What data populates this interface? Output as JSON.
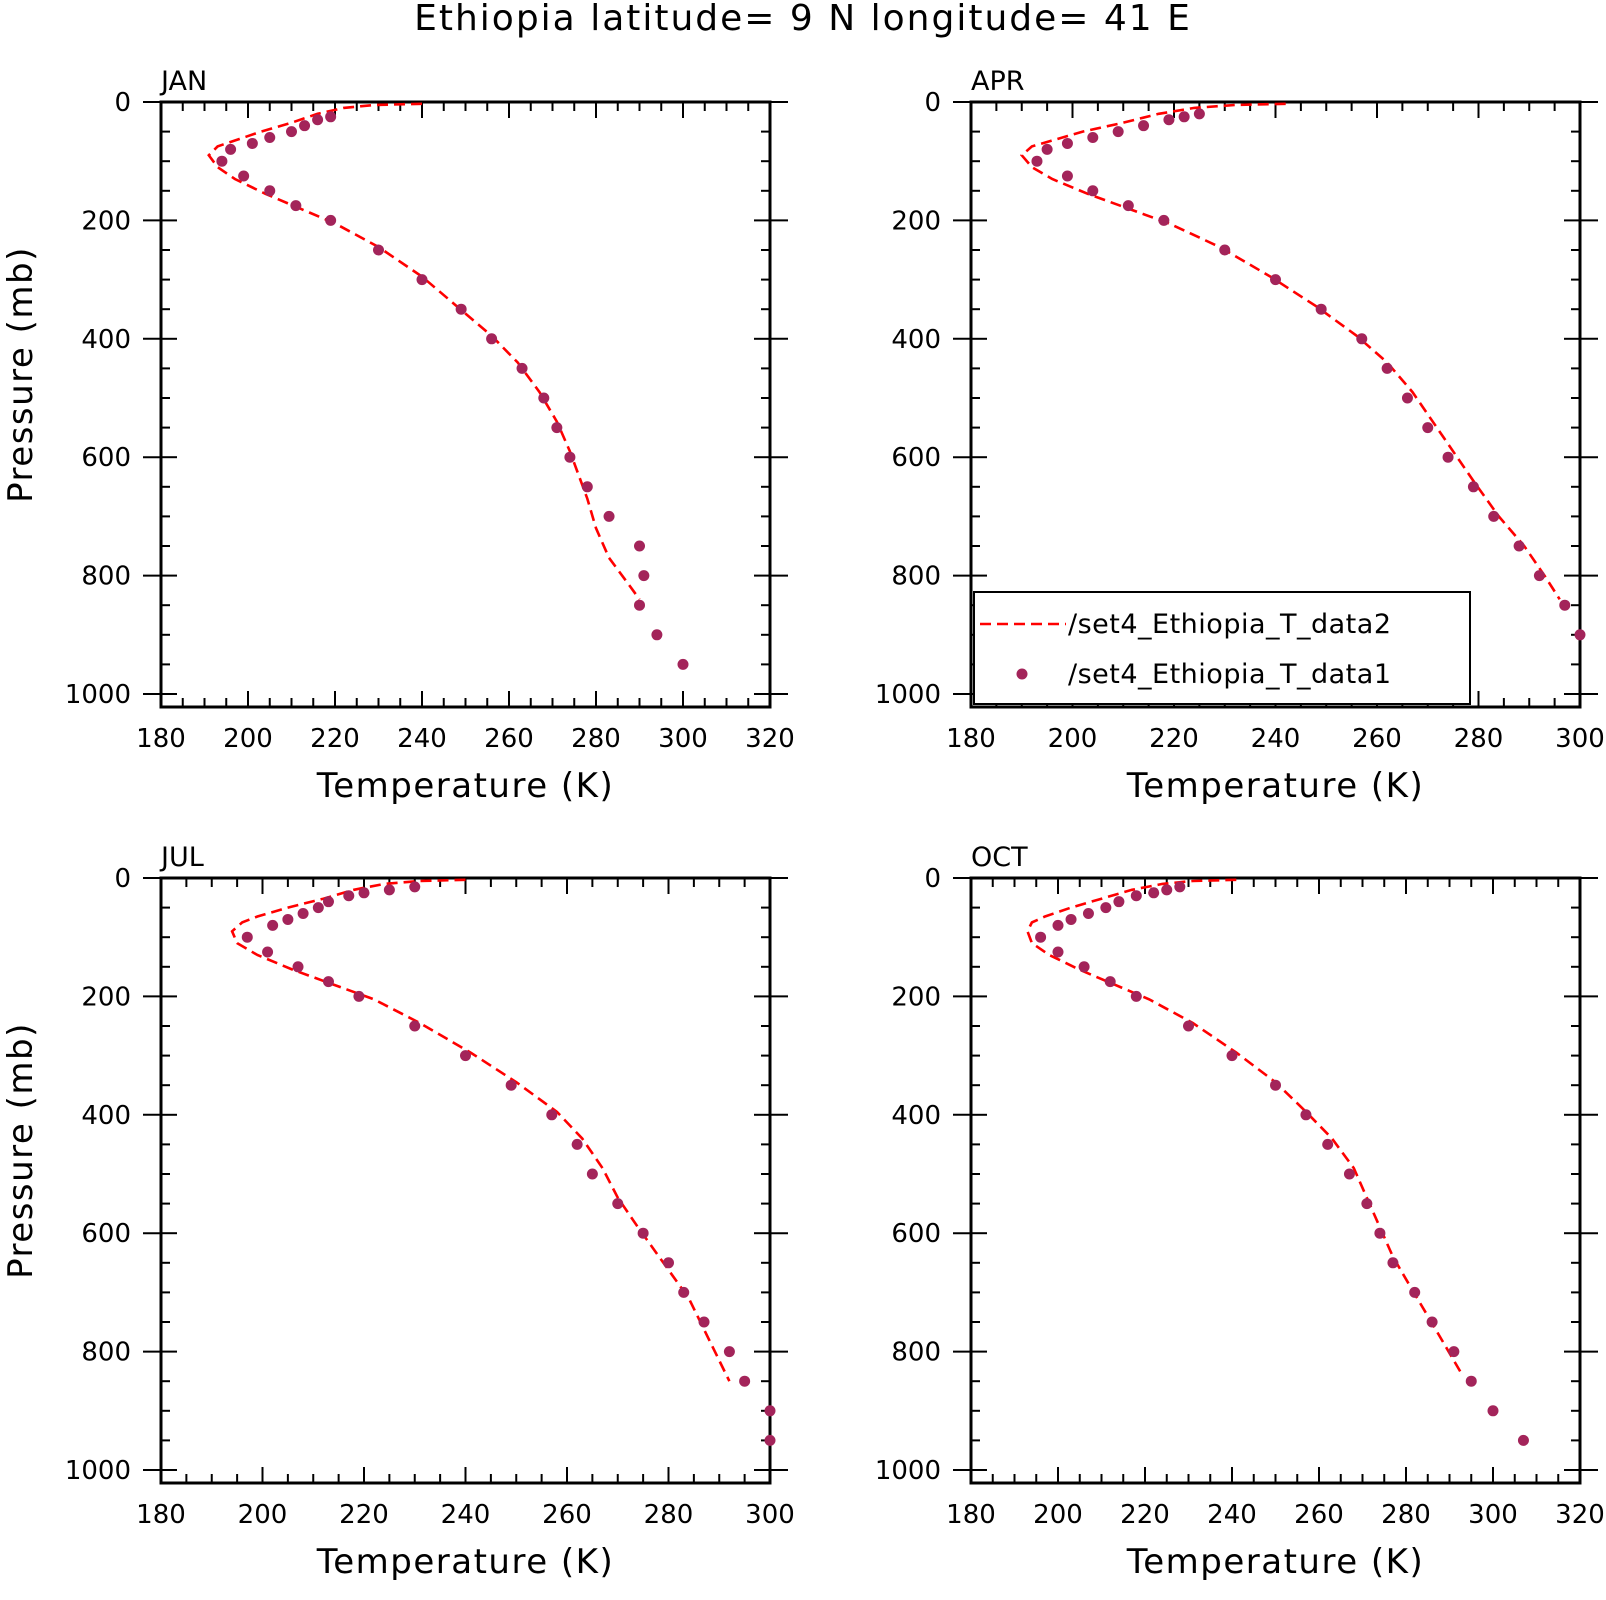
{
  "title": "Ethiopia  latitude= 9 N longitude= 41 E",
  "colors": {
    "line": "#ff0000",
    "dots": "#a3245a",
    "axis": "#000000"
  },
  "legend": {
    "items": [
      "/set4_Ethiopia_T_data2",
      "/set4_Ethiopia_T_data1"
    ],
    "panel": "APR"
  },
  "chart_data": [
    {
      "type": "line",
      "panel": "JAN",
      "xlabel": "Temperature (K)",
      "ylabel": "Pressure (mb)",
      "xlim": [
        180,
        320
      ],
      "ylim": [
        1000,
        0
      ],
      "xticks": [
        "180",
        "200",
        "220",
        "240",
        "260",
        "280",
        "300",
        "320"
      ],
      "yticks": [
        "0",
        "200",
        "400",
        "600",
        "800",
        "1000"
      ],
      "series": [
        {
          "name": "/set4_Ethiopia_T_data2",
          "style": "dashed",
          "x": [
            240,
            229,
            222,
            216,
            210,
            203,
            197,
            193,
            191,
            193,
            197,
            204,
            212,
            220,
            230,
            240,
            248,
            256,
            262,
            267,
            271,
            274,
            276,
            278,
            280,
            283,
            287,
            290
          ],
          "y": [
            3,
            5,
            10,
            20,
            35,
            50,
            65,
            75,
            90,
            110,
            130,
            155,
            180,
            205,
            245,
            295,
            345,
            395,
            440,
            490,
            540,
            590,
            630,
            670,
            720,
            770,
            810,
            840
          ]
        },
        {
          "name": "/set4_Ethiopia_T_data1",
          "style": "dots",
          "x": [
            219,
            216,
            213,
            210,
            205,
            201,
            196,
            194,
            199,
            205,
            211,
            219,
            230,
            240,
            249,
            256,
            263,
            268,
            271,
            274,
            278,
            283,
            290,
            291,
            290,
            294,
            300
          ],
          "y": [
            25,
            30,
            40,
            50,
            60,
            70,
            80,
            100,
            125,
            150,
            175,
            200,
            250,
            300,
            350,
            400,
            450,
            500,
            550,
            600,
            650,
            700,
            750,
            800,
            850,
            900,
            950
          ]
        }
      ]
    },
    {
      "type": "line",
      "panel": "APR",
      "xlabel": "Temperature (K)",
      "ylabel": "",
      "xlim": [
        180,
        300
      ],
      "ylim": [
        1000,
        0
      ],
      "xticks": [
        "180",
        "200",
        "220",
        "240",
        "260",
        "280",
        "300"
      ],
      "yticks": [
        "0",
        "200",
        "400",
        "600",
        "800",
        "1000"
      ],
      "series": [
        {
          "name": "/set4_Ethiopia_T_data2",
          "style": "dashed",
          "x": [
            242,
            232,
            224,
            217,
            210,
            202,
            196,
            192,
            190,
            192,
            196,
            203,
            211,
            219,
            229,
            239,
            248,
            256,
            262,
            267,
            271,
            275,
            279,
            284,
            289,
            293,
            296
          ],
          "y": [
            3,
            5,
            10,
            20,
            35,
            50,
            65,
            75,
            90,
            110,
            130,
            155,
            180,
            205,
            245,
            295,
            345,
            395,
            440,
            490,
            540,
            590,
            640,
            700,
            750,
            800,
            840
          ]
        },
        {
          "name": "/set4_Ethiopia_T_data1",
          "style": "dots",
          "x": [
            225,
            222,
            219,
            214,
            209,
            204,
            199,
            195,
            193,
            199,
            204,
            211,
            218,
            230,
            240,
            249,
            257,
            262,
            266,
            270,
            274,
            279,
            283,
            288,
            292,
            297,
            300
          ],
          "y": [
            20,
            25,
            30,
            40,
            50,
            60,
            70,
            80,
            100,
            125,
            150,
            175,
            200,
            250,
            300,
            350,
            400,
            450,
            500,
            550,
            600,
            650,
            700,
            750,
            800,
            850,
            900
          ]
        }
      ]
    },
    {
      "type": "line",
      "panel": "JUL",
      "xlabel": "Temperature (K)",
      "ylabel": "Pressure (mb)",
      "xlim": [
        180,
        300
      ],
      "ylim": [
        1000,
        0
      ],
      "xticks": [
        "180",
        "200",
        "220",
        "240",
        "260",
        "280",
        "300"
      ],
      "yticks": [
        "0",
        "200",
        "400",
        "600",
        "800",
        "1000"
      ],
      "series": [
        {
          "name": "/set4_Ethiopia_T_data2",
          "style": "dashed",
          "x": [
            240,
            231,
            224,
            218,
            212,
            205,
            199,
            196,
            194,
            195,
            199,
            206,
            214,
            222,
            231,
            241,
            250,
            258,
            263,
            267,
            270,
            274,
            279,
            284,
            288,
            292
          ],
          "y": [
            3,
            5,
            10,
            20,
            35,
            50,
            65,
            75,
            90,
            110,
            130,
            155,
            180,
            205,
            245,
            295,
            345,
            395,
            440,
            490,
            540,
            590,
            650,
            710,
            780,
            850
          ]
        },
        {
          "name": "/set4_Ethiopia_T_data1",
          "style": "dots",
          "x": [
            230,
            225,
            220,
            217,
            213,
            211,
            208,
            205,
            202,
            197,
            201,
            207,
            213,
            219,
            230,
            240,
            249,
            257,
            262,
            265,
            270,
            275,
            280,
            283,
            287,
            292,
            295,
            300,
            300
          ],
          "y": [
            15,
            20,
            25,
            30,
            40,
            50,
            60,
            70,
            80,
            100,
            125,
            150,
            175,
            200,
            250,
            300,
            350,
            400,
            450,
            500,
            550,
            600,
            650,
            700,
            750,
            800,
            850,
            900,
            950
          ]
        }
      ]
    },
    {
      "type": "line",
      "panel": "OCT",
      "xlabel": "Temperature (K)",
      "ylabel": "",
      "xlim": [
        180,
        320
      ],
      "ylim": [
        1000,
        0
      ],
      "xticks": [
        "180",
        "200",
        "220",
        "240",
        "260",
        "280",
        "300",
        "320"
      ],
      "yticks": [
        "0",
        "200",
        "400",
        "600",
        "800",
        "1000"
      ],
      "series": [
        {
          "name": "/set4_Ethiopia_T_data2",
          "style": "dashed",
          "x": [
            241,
            231,
            224,
            217,
            210,
            203,
            197,
            194,
            193,
            194,
            198,
            205,
            213,
            221,
            231,
            241,
            250,
            257,
            263,
            268,
            271,
            274,
            277,
            281,
            285,
            289,
            293
          ],
          "y": [
            3,
            5,
            10,
            20,
            35,
            50,
            65,
            75,
            90,
            110,
            130,
            155,
            180,
            205,
            245,
            295,
            345,
            395,
            440,
            490,
            540,
            590,
            640,
            690,
            740,
            790,
            840
          ]
        },
        {
          "name": "/set4_Ethiopia_T_data1",
          "style": "dots",
          "x": [
            228,
            225,
            222,
            218,
            214,
            211,
            207,
            203,
            200,
            196,
            200,
            206,
            212,
            218,
            230,
            240,
            250,
            257,
            262,
            267,
            271,
            274,
            277,
            282,
            286,
            291,
            295,
            300,
            307
          ],
          "y": [
            15,
            20,
            25,
            30,
            40,
            50,
            60,
            70,
            80,
            100,
            125,
            150,
            175,
            200,
            250,
            300,
            350,
            400,
            450,
            500,
            550,
            600,
            650,
            700,
            750,
            800,
            850,
            900,
            950
          ]
        }
      ]
    }
  ]
}
